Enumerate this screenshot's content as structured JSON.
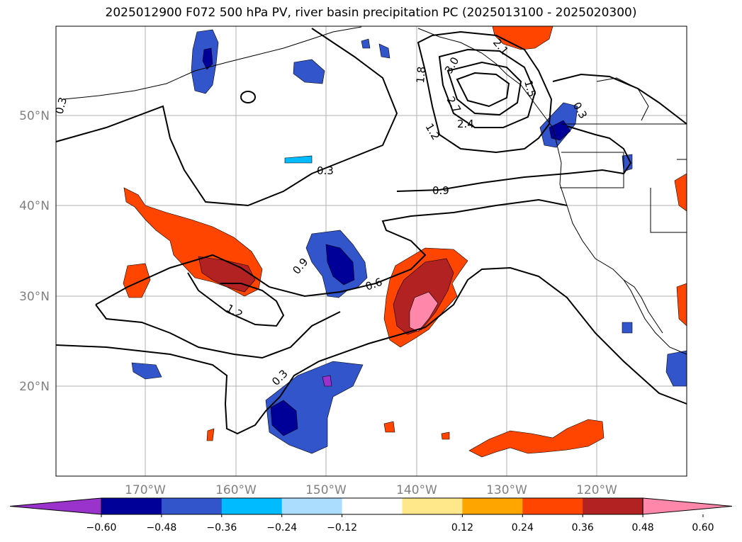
{
  "title": "2025012900 F072 500 hPa PV, river basin precipitation PC (2025013100 - 2025020300)",
  "axes": {
    "lon_labels": [
      "170°W",
      "160°W",
      "150°W",
      "140°W",
      "130°W",
      "120°W"
    ],
    "lat_labels": [
      "50°N",
      "40°N",
      "30°N",
      "20°N"
    ]
  },
  "colorbar": {
    "ticks": [
      "−0.60",
      "−0.48",
      "−0.36",
      "−0.24",
      "−0.12",
      "0.12",
      "0.24",
      "0.36",
      "0.48",
      "0.60"
    ],
    "colors": [
      "#9933cc",
      "#000099",
      "#3355cc",
      "#00bbff",
      "#aaddff",
      "#ffffff",
      "#ffe88a",
      "#ffa500",
      "#ff4500",
      "#b22222",
      "#ff88aa"
    ]
  },
  "contour_labels": [
    {
      "text": "0.3",
      "id": "nw"
    },
    {
      "text": "0.3",
      "id": "center"
    },
    {
      "text": "0.3",
      "id": "south"
    },
    {
      "text": "0.6",
      "id": "mid"
    },
    {
      "text": "0.9",
      "id": "east"
    },
    {
      "text": "0.9",
      "id": "west"
    },
    {
      "text": "1.2",
      "id": "west"
    },
    {
      "text": "1.2",
      "id": "north"
    },
    {
      "text": "1.5",
      "id": "north"
    },
    {
      "text": "1.8",
      "id": "north"
    },
    {
      "text": "2.1",
      "id": "north"
    },
    {
      "text": "2.4",
      "id": "north"
    },
    {
      "text": "2.7",
      "id": "north"
    },
    {
      "text": "3.0",
      "id": "north"
    },
    {
      "text": "0.3",
      "id": "ne"
    }
  ]
}
